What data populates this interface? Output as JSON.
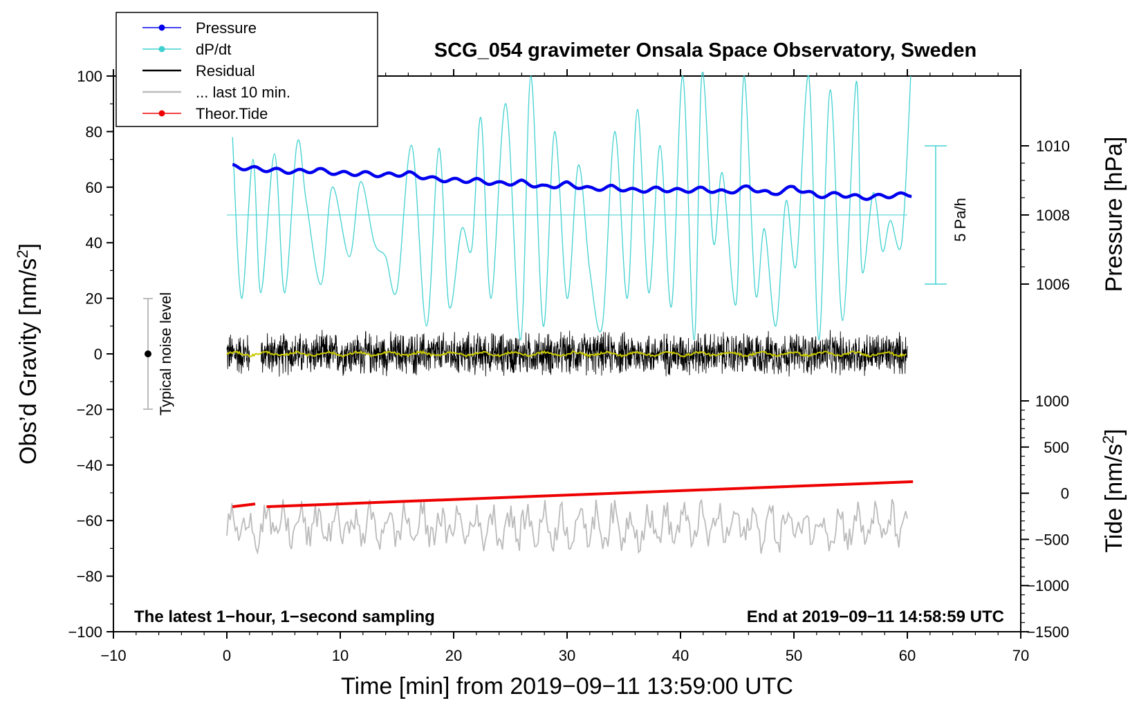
{
  "chart_data": {
    "type": "line",
    "title": "SCG_054 gravimeter Onsala Space Observatory, Sweden",
    "xlabel": "Time [min] from 2019−09−11 13:59:00 UTC",
    "ylabel_left": "Obs’d Gravity [nm/s",
    "ylabel_left_sup": "2",
    "ylabel_left_close": "]",
    "ylabel_right_pressure": "Pressure [hPa]",
    "ylabel_right_tide": "Tide [nm/s",
    "ylabel_right_tide_sup": "2",
    "ylabel_right_tide_close": "]",
    "xlim": [
      -10,
      70
    ],
    "ylim_gravity": [
      -100,
      100
    ],
    "ylim_pressure_axis": [
      1006,
      1010
    ],
    "ylim_tide_axis": [
      -1500,
      1000
    ],
    "x_ticks": [
      "−10",
      "0",
      "10",
      "20",
      "30",
      "40",
      "50",
      "60",
      "70"
    ],
    "y_ticks_left": [
      "−100",
      "−80",
      "−60",
      "−40",
      "−20",
      "0",
      "20",
      "40",
      "60",
      "80",
      "100"
    ],
    "y_ticks_pressure": [
      "1006",
      "1008",
      "1010"
    ],
    "y_ticks_tide": [
      "−1500",
      "−1000",
      "−500",
      "0",
      "500",
      "1000"
    ],
    "noise_bar_label": "Typical noise level",
    "noise_bar_range": [
      -20,
      20
    ],
    "dpdt_scale_label": "5 Pa/h",
    "footer_left": "The latest 1−hour, 1−second sampling",
    "footer_right": "End at 2019−09−11 14:58:59 UTC",
    "legend": [
      {
        "label": "Pressure",
        "color": "#0000ee",
        "marker": true
      },
      {
        "label": "dP/dt",
        "color": "#40d0d0",
        "marker": true
      },
      {
        "label": "Residual",
        "color": "#000000",
        "marker": false
      },
      {
        "label": "... last 10 min.",
        "color": "#bbbbbb",
        "marker": false
      },
      {
        "label": "Theor.Tide",
        "color": "#ee0000",
        "marker": true
      }
    ],
    "series": [
      {
        "name": "Pressure",
        "axis": "pressure_hPa",
        "color": "#0000ee",
        "x": [
          0.5,
          2,
          4,
          6,
          8,
          10,
          12,
          14,
          16,
          18,
          20,
          22,
          24,
          26,
          28,
          30,
          32,
          34,
          36,
          38,
          40,
          42,
          44,
          46,
          48,
          50,
          52,
          54,
          56,
          58,
          60.5
        ],
        "y": [
          1009.4,
          1009.35,
          1009.3,
          1009.25,
          1009.3,
          1009.2,
          1009.2,
          1009.15,
          1009.2,
          1009.05,
          1009.0,
          1009.0,
          1008.9,
          1008.95,
          1008.8,
          1008.9,
          1008.75,
          1008.8,
          1008.7,
          1008.75,
          1008.7,
          1008.75,
          1008.65,
          1008.8,
          1008.6,
          1008.8,
          1008.55,
          1008.6,
          1008.5,
          1008.55,
          1008.6
        ]
      },
      {
        "name": "dP/dt",
        "axis": "gravity_units",
        "color": "#40d0d0",
        "baseline": 50,
        "x": [
          0.5,
          1.3,
          2.3,
          3.0,
          4.2,
          5.1,
          6.2,
          7.0,
          8.3,
          9.3,
          10.8,
          11.8,
          13.0,
          14.0,
          15.0,
          16.3,
          17.6,
          18.7,
          19.6,
          20.7,
          21.6,
          22.4,
          23.3,
          24.6,
          25.9,
          26.8,
          27.9,
          28.9,
          30.0,
          31.0,
          32.0,
          33.1,
          34.2,
          35.3,
          36.2,
          37.2,
          38.2,
          39.2,
          40.2,
          41.2,
          41.9,
          42.9,
          43.7,
          44.9,
          45.6,
          46.6,
          47.4,
          48.4,
          49.3,
          50.2,
          51.3,
          52.2,
          53.2,
          54.3,
          55.5,
          56.0,
          57.0,
          57.8,
          58.5,
          59.5,
          60.3
        ],
        "y": [
          78,
          20,
          70,
          22,
          72,
          22,
          76,
          55,
          25,
          60,
          35,
          62,
          40,
          35,
          23,
          75,
          10,
          74,
          17,
          45,
          38,
          85,
          20,
          90,
          5,
          100,
          10,
          80,
          20,
          68,
          30,
          10,
          80,
          20,
          88,
          22,
          75,
          17,
          100,
          5,
          102,
          40,
          65,
          18,
          100,
          22,
          45,
          10,
          55,
          32,
          100,
          5,
          95,
          12,
          98,
          30,
          58,
          37,
          48,
          40,
          100
        ]
      },
      {
        "name": "Residual",
        "axis": "gravity_units",
        "color": "#000000",
        "x_range": [
          0,
          60
        ],
        "gap": [
          2,
          3
        ],
        "center": 0,
        "amplitude": 6
      },
      {
        "name": "Residual smoothed",
        "axis": "gravity_units",
        "color": "#c8c800",
        "x_range": [
          0,
          60
        ],
        "center": 0
      },
      {
        "name": "Theor.Tide",
        "axis": "tide_nm_s2",
        "color": "#ee0000",
        "x": [
          0.5,
          2.5,
          3.5,
          60.5
        ],
        "y": [
          -55,
          -54,
          -55,
          -46
        ],
        "note": "drawn in gravity-axis units"
      },
      {
        "name": "... last 10 min.",
        "axis": "gravity_units",
        "color": "#bbbbbb",
        "x_range": [
          0,
          60
        ],
        "center": -62,
        "amplitude": 8
      }
    ]
  }
}
